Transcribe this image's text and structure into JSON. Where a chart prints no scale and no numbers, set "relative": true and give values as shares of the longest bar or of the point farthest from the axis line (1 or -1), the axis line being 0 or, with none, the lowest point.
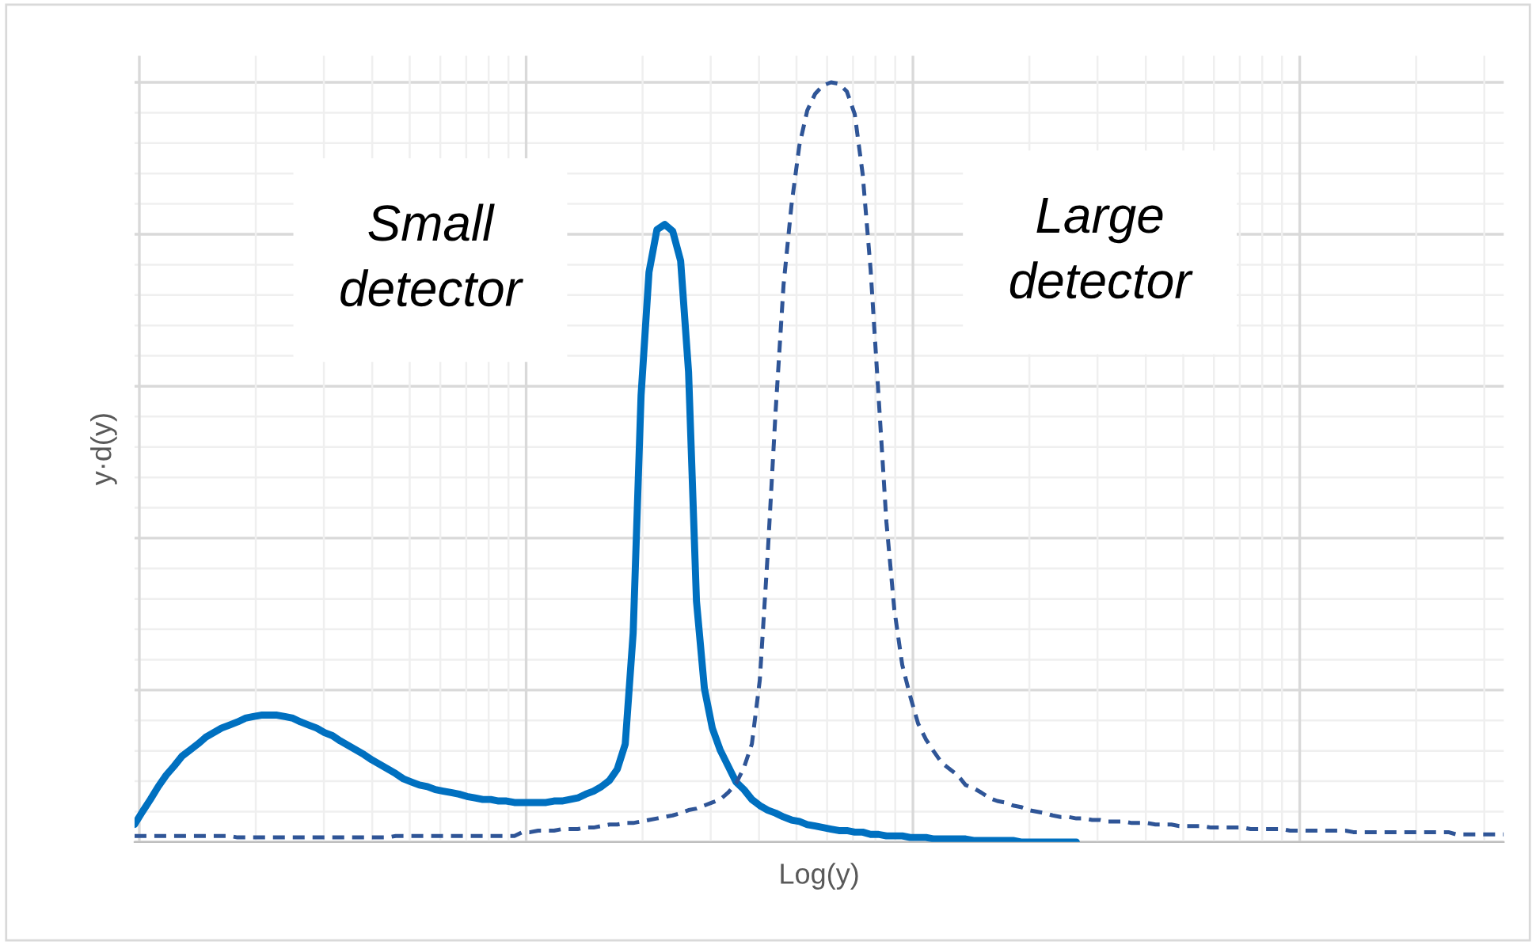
{
  "chart_data": {
    "type": "line",
    "relative": true,
    "xlabel": "Log(y)",
    "ylabel": "y·d(y)",
    "grid": true,
    "categories": [
      null,
      null,
      null,
      null,
      null,
      null,
      null,
      null,
      null,
      null,
      null,
      null,
      null,
      null,
      null,
      null,
      null,
      null,
      null,
      null,
      null,
      null,
      null,
      null,
      null,
      null,
      null,
      null,
      null,
      null,
      null,
      null,
      null,
      null,
      null,
      null,
      null,
      null,
      null,
      null,
      null,
      null,
      null,
      null,
      null,
      null,
      null,
      null,
      null,
      null,
      null,
      null,
      null,
      null,
      null,
      null,
      null,
      null,
      null,
      null,
      null,
      null,
      null,
      null,
      null,
      null,
      null,
      null,
      null,
      null,
      null,
      null,
      null,
      null,
      null,
      null,
      null,
      null,
      null,
      null,
      null,
      null,
      null,
      null,
      null,
      null,
      null,
      null,
      null,
      null,
      null,
      null,
      null,
      null,
      null,
      null,
      null,
      null,
      null,
      null,
      null,
      null,
      null,
      null,
      null,
      null,
      null,
      null,
      null,
      null,
      null,
      null,
      null,
      null,
      null,
      null,
      null,
      null,
      null,
      null,
      null,
      null,
      null,
      null,
      null,
      null,
      null,
      null,
      null,
      null,
      null,
      null,
      null,
      null,
      null,
      null,
      null,
      null,
      null,
      null,
      null,
      null,
      null,
      null,
      null,
      null,
      null,
      null,
      null,
      null,
      null,
      null,
      null,
      null,
      null,
      null,
      null,
      null,
      null,
      null,
      null,
      null,
      null,
      null,
      null,
      null,
      null,
      null,
      null,
      null,
      null,
      null,
      null,
      null
    ],
    "series": [
      {
        "name": "Small detector",
        "color": "#0070c0",
        "line_style": "solid",
        "values": [
          0.023,
          0.04,
          0.056,
          0.073,
          0.088,
          0.1,
          0.113,
          0.121,
          0.129,
          0.138,
          0.144,
          0.15,
          0.154,
          0.158,
          0.163,
          0.165,
          0.167,
          0.167,
          0.167,
          0.165,
          0.163,
          0.158,
          0.154,
          0.15,
          0.144,
          0.14,
          0.133,
          0.127,
          0.121,
          0.115,
          0.108,
          0.102,
          0.096,
          0.09,
          0.083,
          0.079,
          0.075,
          0.073,
          0.069,
          0.067,
          0.065,
          0.063,
          0.06,
          0.058,
          0.056,
          0.056,
          0.054,
          0.054,
          0.052,
          0.052,
          0.052,
          0.052,
          0.052,
          0.054,
          0.054,
          0.056,
          0.058,
          0.063,
          0.067,
          0.073,
          0.081,
          0.096,
          0.129,
          0.275,
          0.588,
          0.75,
          0.806,
          0.813,
          0.804,
          0.765,
          0.619,
          0.317,
          0.202,
          0.15,
          0.121,
          0.1,
          0.079,
          0.069,
          0.056,
          0.048,
          0.042,
          0.038,
          0.033,
          0.029,
          0.027,
          0.023,
          0.021,
          0.019,
          0.017,
          0.015,
          0.015,
          0.013,
          0.013,
          0.01,
          0.01,
          0.008,
          0.008,
          0.008,
          0.006,
          0.006,
          0.006,
          0.004,
          0.004,
          0.004,
          0.004,
          0.004,
          0.002,
          0.002,
          0.002,
          0.002,
          0.002,
          0.002,
          0,
          0,
          0,
          0,
          0,
          0,
          0,
          0,
          null,
          null,
          null,
          null,
          null,
          null,
          null,
          null,
          null,
          null,
          null,
          null,
          null,
          null,
          null,
          null,
          null,
          null,
          null,
          null,
          null,
          null,
          null,
          null,
          null,
          null,
          null,
          null,
          null,
          null,
          null,
          null,
          null,
          null,
          null,
          null,
          null,
          null,
          null,
          null,
          null,
          null,
          null,
          null,
          null,
          null,
          null,
          null,
          null,
          null,
          null,
          null,
          null,
          null
        ]
      },
      {
        "name": "Large detector",
        "color": "#2f5597",
        "line_style": "dashed",
        "values": [
          0.008,
          0.008,
          0.008,
          0.008,
          0.008,
          0.008,
          0.008,
          0.008,
          0.008,
          0.008,
          0.008,
          0.008,
          0.008,
          0.006,
          0.006,
          0.006,
          0.006,
          0.006,
          0.006,
          0.006,
          0.006,
          0.006,
          0.006,
          0.006,
          0.006,
          0.006,
          0.006,
          0.006,
          0.006,
          0.006,
          0.006,
          0.006,
          0.006,
          0.008,
          0.008,
          0.008,
          0.008,
          0.008,
          0.008,
          0.008,
          0.008,
          0.008,
          0.008,
          0.008,
          0.008,
          0.008,
          0.008,
          0.008,
          0.008,
          0.013,
          0.013,
          0.015,
          0.015,
          0.015,
          0.017,
          0.017,
          0.017,
          0.019,
          0.019,
          0.021,
          0.023,
          0.023,
          0.025,
          0.025,
          0.027,
          0.029,
          0.031,
          0.033,
          0.035,
          0.038,
          0.042,
          0.044,
          0.048,
          0.052,
          0.056,
          0.065,
          0.077,
          0.098,
          0.129,
          0.213,
          0.379,
          0.567,
          0.733,
          0.838,
          0.917,
          0.963,
          0.985,
          0.996,
          1.0,
          0.998,
          0.988,
          0.958,
          0.879,
          0.754,
          0.588,
          0.421,
          0.306,
          0.233,
          0.192,
          0.156,
          0.135,
          0.119,
          0.104,
          0.096,
          0.088,
          0.075,
          0.071,
          0.065,
          0.058,
          0.054,
          0.052,
          0.048,
          0.046,
          0.042,
          0.04,
          0.038,
          0.035,
          0.033,
          0.033,
          0.031,
          0.031,
          0.029,
          0.029,
          0.027,
          0.027,
          0.027,
          0.025,
          0.025,
          0.025,
          0.023,
          0.023,
          0.023,
          0.021,
          0.021,
          0.021,
          0.021,
          0.019,
          0.019,
          0.019,
          0.019,
          0.019,
          0.017,
          0.017,
          0.017,
          0.017,
          0.017,
          0.015,
          0.015,
          0.015,
          0.015,
          0.015,
          0.015,
          0.015,
          0.015,
          0.013,
          0.013,
          0.013,
          0.013,
          0.013,
          0.013,
          0.013,
          0.013,
          0.013,
          0.013,
          0.013,
          0.013,
          0.013,
          0.01,
          0.01,
          0.01,
          0.01,
          0.01,
          0.01,
          0.01
        ]
      }
    ]
  }
}
